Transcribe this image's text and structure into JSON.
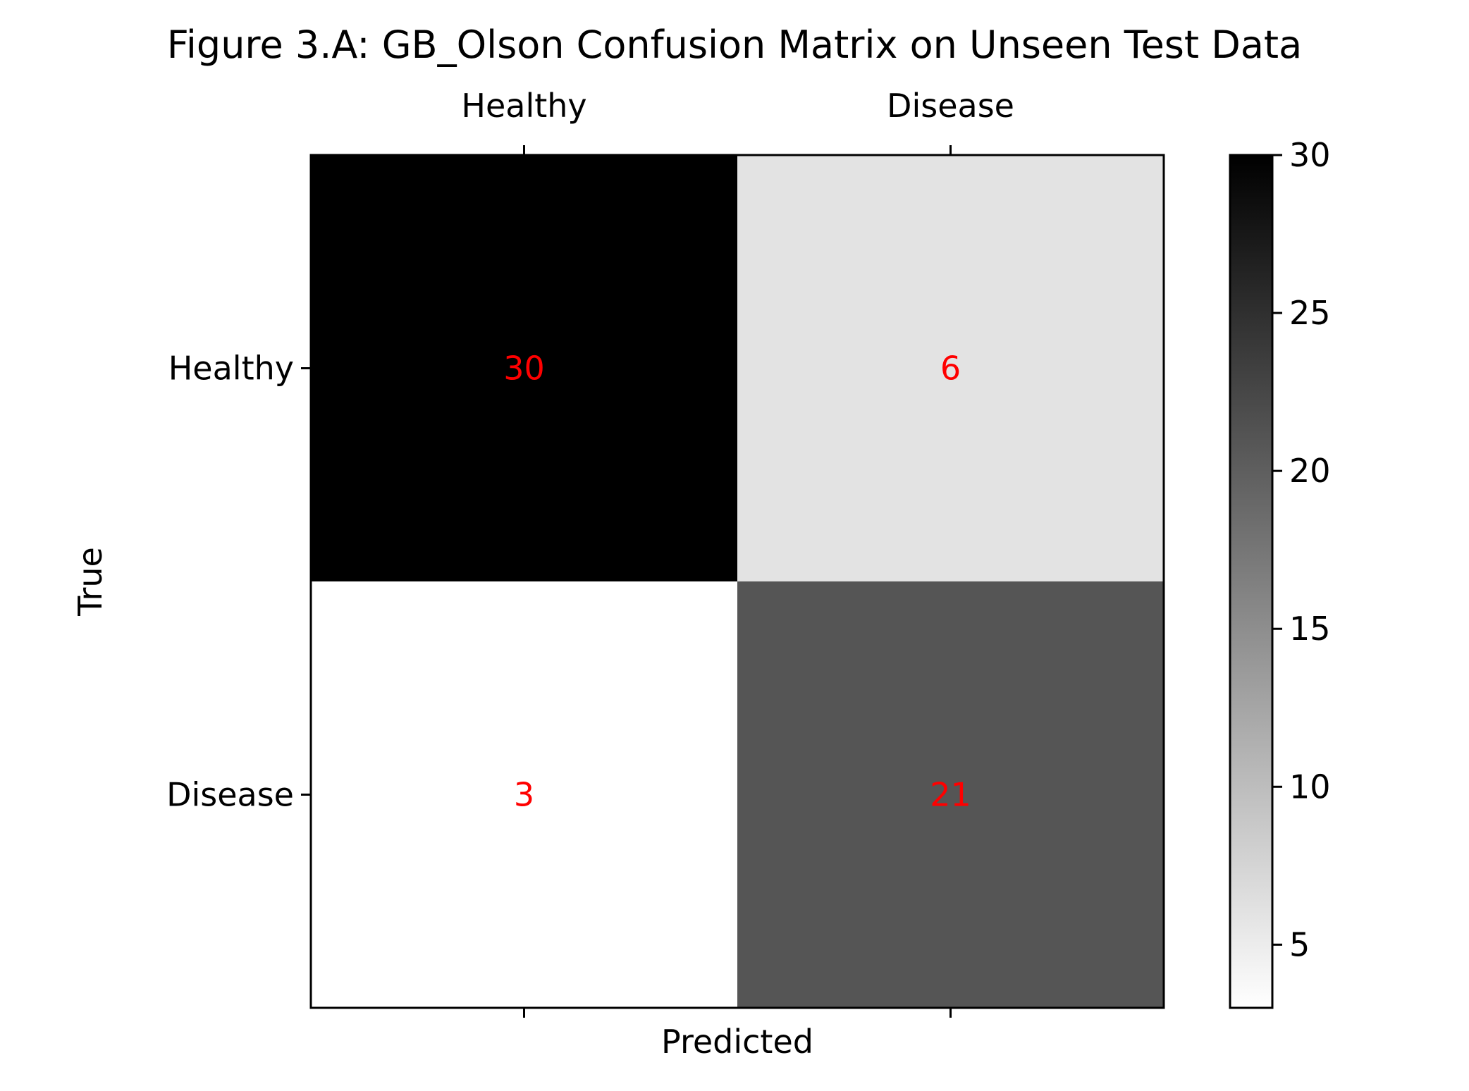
{
  "chart_data": {
    "type": "heatmap",
    "title": "Figure 3.A: GB_Olson Confusion Matrix on Unseen Test Data",
    "xlabel": "Predicted",
    "ylabel": "True",
    "x_categories": [
      "Healthy",
      "Disease"
    ],
    "y_categories": [
      "Healthy",
      "Disease"
    ],
    "values": [
      [
        30,
        6
      ],
      [
        3,
        21
      ]
    ],
    "colormap": "greys",
    "color_range": [
      3,
      30
    ],
    "colorbar_ticks": [
      5,
      10,
      15,
      20,
      25,
      30
    ],
    "x_tick_position": "top",
    "grid": false
  },
  "colors": {
    "cell_text": "#ff0000",
    "axis": "#000000",
    "low": "#ffffff",
    "high": "#000000"
  }
}
